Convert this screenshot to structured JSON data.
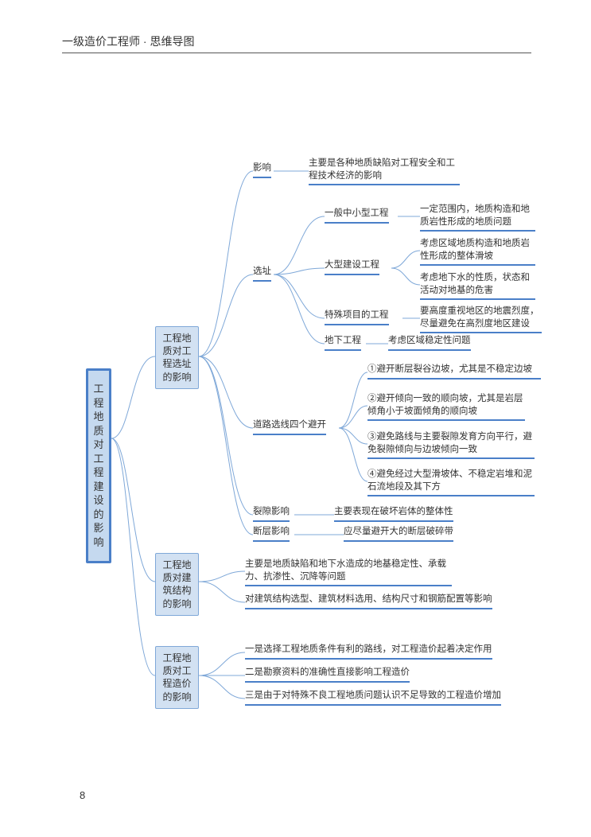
{
  "header": {
    "title": "一级造价工程师 · 思维导图"
  },
  "page_number": "8",
  "colors": {
    "root_border": "#4a7fc8",
    "root_fill": "#c5d9ef",
    "sub_border": "#7fa8d8",
    "sub_fill": "#d2e1f2",
    "underline": "#4a7fc8",
    "connector": "#7fa8d8",
    "text": "#333333",
    "bg": "#ffffff"
  },
  "root": {
    "label": "工程地质对工程建设的影响"
  },
  "subs": [
    {
      "label": "工程地质对工程选址的影响"
    },
    {
      "label": "工程地质对建筑结构的影响"
    },
    {
      "label": "工程地质对工程造价的影响"
    }
  ],
  "s1": {
    "l1": {
      "label": "影响",
      "text": "主要是各种地质缺陷对工程安全和工程技术经济的影响"
    },
    "l2": {
      "label": "选址",
      "a": {
        "label": "一般中小型工程",
        "text": "一定范围内，地质构造和地质岩性形成的地质问题"
      },
      "b": {
        "label": "大型建设工程",
        "t1": "考虑区域地质构造和地质岩性形成的整体滑坡",
        "t2": "考虑地下水的性质，状态和活动对地基的危害"
      },
      "c": {
        "label": "特殊项目的工程",
        "text": "要高度重视地区的地震烈度，尽量避免在高烈度地区建设"
      },
      "d": {
        "label": "地下工程",
        "text": "考虑区域稳定性问题"
      }
    },
    "l3": {
      "label": "道路选线四个避开",
      "t1": "①避开断层裂谷边坡，尤其是不稳定边坡",
      "t2": "②避开倾向一致的顺向坡，尤其是岩层倾角小于坡面倾角的顺向坡",
      "t3": "③避免路线与主要裂隙发育方向平行，避免裂隙倾向与边坡倾向一致",
      "t4": "④避免经过大型滑坡体、不稳定岩堆和泥石流地段及其下方"
    },
    "l4": {
      "label": "裂隙影响",
      "text": "主要表现在破坏岩体的整体性"
    },
    "l5": {
      "label": "断层影响",
      "text": "应尽量避开大的断层破碎带"
    }
  },
  "s2": {
    "t1": "主要是地质缺陷和地下水造成的地基稳定性、承载力、抗渗性、沉降等问题",
    "t2": "对建筑结构选型、建筑材料选用、结构尺寸和钢筋配置等影响"
  },
  "s3": {
    "t1": "一是选择工程地质条件有利的路线，对工程造价起着决定作用",
    "t2": "二是勘察资料的准确性直接影响工程造价",
    "t3": "三是由于对特殊不良工程地质问题认识不足导致的工程造价增加"
  }
}
